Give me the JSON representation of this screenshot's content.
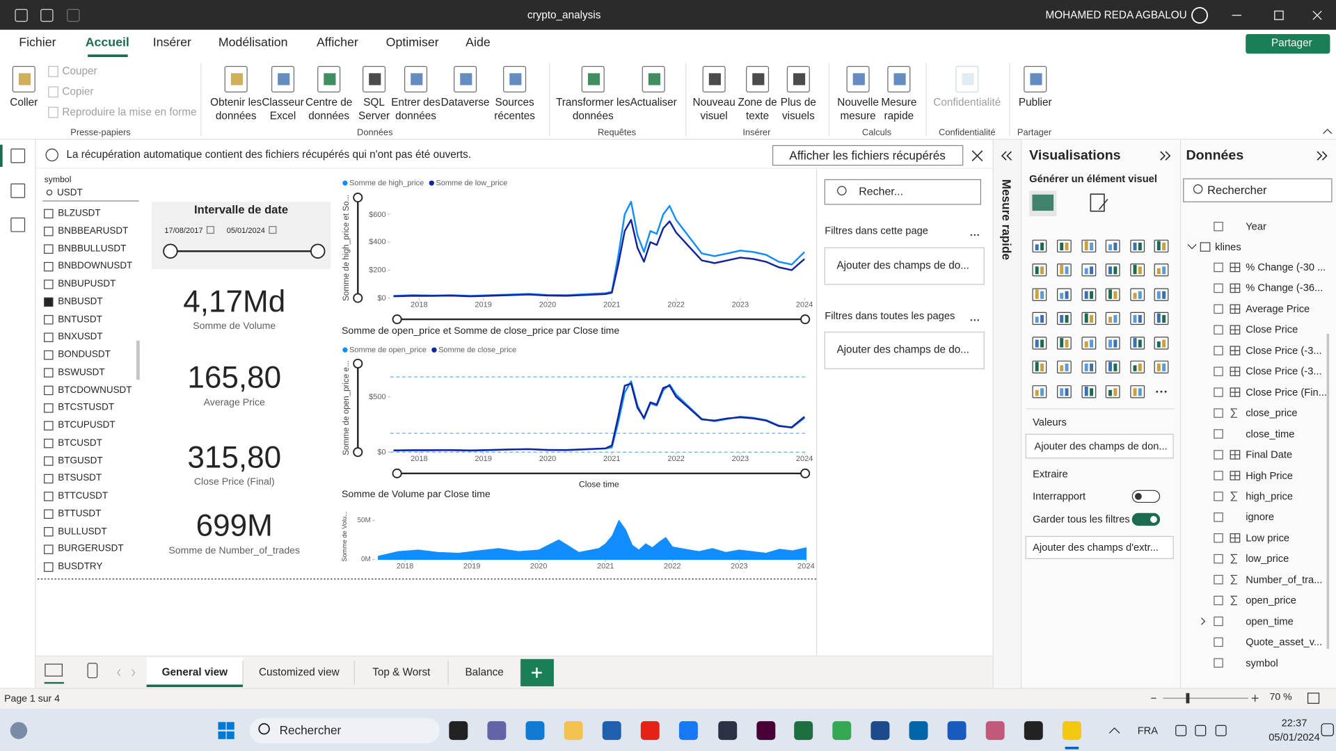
{
  "title_bar": {
    "file_name": "crypto_analysis",
    "user": "MOHAMED REDA AGBALOU"
  },
  "menu": {
    "tabs": [
      "Fichier",
      "Accueil",
      "Insérer",
      "Modélisation",
      "Afficher",
      "Optimiser",
      "Aide"
    ],
    "share": "Partager"
  },
  "ribbon": [
    {
      "group": "Presse-papiers",
      "buttons": [
        "Coller",
        "Couper",
        "Copier",
        "Reproduire la mise en forme"
      ]
    },
    {
      "group": "Données",
      "buttons": [
        "Obtenir les données",
        "Classeur Excel",
        "Centre de données",
        "SQL Server",
        "Entrer des données",
        "Dataverse",
        "Sources récentes"
      ]
    },
    {
      "group": "Requêtes",
      "buttons": [
        "Transformer les données",
        "Actualiser"
      ]
    },
    {
      "group": "Insérer",
      "buttons": [
        "Nouveau visuel",
        "Zone de texte",
        "Plus de visuels"
      ]
    },
    {
      "group": "Calculs",
      "buttons": [
        "Nouvelle mesure",
        "Mesure rapide"
      ]
    },
    {
      "group": "Confidentialité",
      "buttons": [
        "Confidentialité"
      ]
    },
    {
      "group": "Partager",
      "buttons": [
        "Publier"
      ]
    }
  ],
  "info_bar": {
    "message": "La récupération automatique contient des fichiers récupérés qui n'ont pas été ouverts.",
    "button": "Afficher les fichiers récupérés"
  },
  "slicer": {
    "title": "symbol",
    "search": "USDT",
    "items": [
      "BLZUSDT",
      "BNBBEARUSDT",
      "BNBBULLUSDT",
      "BNBDOWNUSDT",
      "BNBUPUSDT",
      "BNBUSDT",
      "BNTUSDT",
      "BNXUSDT",
      "BONDUSDT",
      "BSWUSDT",
      "BTCDOWNUSDT",
      "BTCSTUSDT",
      "BTCUPUSDT",
      "BTCUSDT",
      "BTGUSDT",
      "BTSUSDT",
      "BTTCUSDT",
      "BTTUSDT",
      "BULLUSDT",
      "BURGERUSDT",
      "BUSDTRY"
    ],
    "checked": [
      false,
      false,
      false,
      false,
      false,
      true,
      false,
      false,
      false,
      false,
      false,
      false,
      false,
      false,
      false,
      false,
      false,
      false,
      false,
      false,
      false
    ]
  },
  "date_slicer": {
    "title": "Intervalle de date",
    "start": "17/08/2017",
    "end": "05/01/2024"
  },
  "cards": [
    {
      "value": "4,17Md",
      "label": "Somme de Volume"
    },
    {
      "value": "165,80",
      "label": "Average Price"
    },
    {
      "value": "315,80",
      "label": "Close Price (Final)"
    },
    {
      "value": "699M",
      "label": "Somme de Number_of_trades"
    }
  ],
  "chart_data": [
    {
      "type": "line",
      "y_label": "Somme de high_price et So...",
      "x": [
        2017.6,
        2017.9,
        2018.2,
        2018.5,
        2018.8,
        2019.1,
        2019.4,
        2019.7,
        2020.0,
        2020.3,
        2020.6,
        2020.9,
        2021.0,
        2021.1,
        2021.2,
        2021.3,
        2021.4,
        2021.5,
        2021.6,
        2021.7,
        2021.8,
        2021.9,
        2022.0,
        2022.2,
        2022.4,
        2022.6,
        2022.8,
        2023.0,
        2023.2,
        2023.4,
        2023.6,
        2023.8,
        2024.0
      ],
      "series": [
        {
          "name": "Somme de high_price",
          "color": "#118DFF",
          "values": [
            15,
            20,
            18,
            20,
            15,
            20,
            25,
            30,
            22,
            20,
            28,
            35,
            45,
            300,
            600,
            690,
            450,
            330,
            480,
            460,
            600,
            660,
            560,
            440,
            320,
            300,
            320,
            340,
            330,
            310,
            260,
            240,
            330
          ]
        },
        {
          "name": "Somme de low_price",
          "color": "#12239E",
          "values": [
            12,
            16,
            15,
            17,
            12,
            16,
            20,
            25,
            18,
            16,
            22,
            28,
            38,
            240,
            480,
            560,
            360,
            260,
            400,
            380,
            500,
            550,
            470,
            370,
            270,
            250,
            270,
            290,
            280,
            260,
            220,
            200,
            280
          ]
        }
      ],
      "xlim": [
        2017.55,
        2024.05
      ],
      "xticks": [
        2018,
        2019,
        2020,
        2021,
        2022,
        2023,
        2024
      ],
      "ylim": [
        0,
        720
      ],
      "yticks": [
        {
          "value": 0,
          "label": "$0"
        },
        {
          "value": 200,
          "label": "$200"
        },
        {
          "value": 400,
          "label": "$400"
        },
        {
          "value": 600,
          "label": "$600"
        }
      ]
    },
    {
      "type": "line",
      "title": "Somme de open_price et Somme de close_price par Close time",
      "y_label": "Somme de open_price e...",
      "x_label": "Close time",
      "x": [
        2017.6,
        2017.9,
        2018.2,
        2018.5,
        2018.8,
        2019.1,
        2019.4,
        2019.7,
        2020.0,
        2020.3,
        2020.6,
        2020.9,
        2021.0,
        2021.1,
        2021.2,
        2021.3,
        2021.4,
        2021.5,
        2021.6,
        2021.7,
        2021.8,
        2021.9,
        2022.0,
        2022.2,
        2022.4,
        2022.6,
        2022.8,
        2023.0,
        2023.2,
        2023.4,
        2023.6,
        2023.8,
        2024.0
      ],
      "series": [
        {
          "name": "Somme de open_price",
          "color": "#118DFF",
          "values": [
            14,
            18,
            17,
            19,
            14,
            18,
            23,
            28,
            20,
            18,
            25,
            32,
            42,
            270,
            540,
            640,
            420,
            300,
            440,
            420,
            560,
            610,
            520,
            410,
            300,
            280,
            300,
            320,
            310,
            290,
            240,
            220,
            310
          ]
        },
        {
          "name": "Somme de close_price",
          "color": "#12239E",
          "values": [
            16,
            17,
            18,
            18,
            15,
            19,
            24,
            27,
            19,
            19,
            27,
            34,
            60,
            320,
            600,
            620,
            400,
            310,
            450,
            430,
            580,
            600,
            500,
            400,
            295,
            285,
            305,
            315,
            305,
            285,
            235,
            225,
            320
          ]
        }
      ],
      "reference_lines": [
        0,
        170,
        680
      ],
      "xlim": [
        2017.55,
        2024.05
      ],
      "xticks": [
        2018,
        2019,
        2020,
        2021,
        2022,
        2023,
        2024
      ],
      "ylim": [
        0,
        800
      ],
      "yticks": [
        {
          "value": 0,
          "label": "$0"
        },
        {
          "value": 500,
          "label": "$500"
        }
      ]
    },
    {
      "type": "area",
      "title": "Somme de Volume par Close time",
      "y_label": "Somme de Volu...",
      "x": [
        2017.6,
        2017.9,
        2018.2,
        2018.5,
        2018.8,
        2019.1,
        2019.4,
        2019.7,
        2020.0,
        2020.3,
        2020.6,
        2020.9,
        2021.0,
        2021.1,
        2021.2,
        2021.3,
        2021.4,
        2021.5,
        2021.6,
        2021.7,
        2021.8,
        2021.9,
        2022.0,
        2022.2,
        2022.4,
        2022.6,
        2022.8,
        2023.0,
        2023.2,
        2023.4,
        2023.6,
        2023.8,
        2024.0
      ],
      "series": [
        {
          "name": "Somme de Volume",
          "color": "#118DFF",
          "values": [
            4000000,
            10000000,
            12000000,
            9000000,
            8000000,
            11000000,
            14000000,
            10000000,
            12000000,
            25000000,
            9000000,
            14000000,
            20000000,
            30000000,
            50000000,
            38000000,
            18000000,
            12000000,
            20000000,
            15000000,
            22000000,
            28000000,
            16000000,
            13000000,
            10000000,
            14000000,
            9000000,
            12000000,
            10000000,
            8000000,
            13000000,
            11000000,
            15000000
          ]
        }
      ],
      "xlim": [
        2017.55,
        2024.05
      ],
      "xticks": [
        2018,
        2019,
        2020,
        2021,
        2022,
        2023,
        2024
      ],
      "ylim": [
        0,
        60000000
      ],
      "yticks": [
        {
          "value": 0,
          "label": "0M"
        },
        {
          "value": 50000000,
          "label": "50M"
        }
      ]
    }
  ],
  "filters": {
    "search": "Recher...",
    "this_page": "Filtres dans cette page",
    "all_pages": "Filtres dans toutes les pages",
    "add_field": "Ajouter des champs de do..."
  },
  "quick_measure": "Mesure rapide",
  "visualizations": {
    "title": "Visualisations",
    "build": "Générer un élément visuel",
    "values": "Valeurs",
    "add_values": "Ajouter des champs de don...",
    "drillthrough": "Extraire",
    "cross_report": "Interrapport",
    "cross_report_on": false,
    "keep_filters": "Garder tous les filtres",
    "keep_filters_on": true,
    "add_drill": "Ajouter des champs d'extr..."
  },
  "data_pane": {
    "title": "Données",
    "search": "Rechercher",
    "year": "Year",
    "table": "klines",
    "fields": [
      "% Change (-30 ...",
      "% Change (-36...",
      "Average Price",
      "Close Price",
      "Close Price (-3...",
      "Close Price (-3...",
      "Close Price (Fin...",
      "close_price",
      "close_time",
      "Final Date",
      "High Price",
      "high_price",
      "ignore",
      "Low price",
      "low_price",
      "Number_of_tra...",
      "open_price",
      "open_time",
      "Quote_asset_v...",
      "symbol"
    ]
  },
  "tabs": [
    "General view",
    "Customized view",
    "Top & Worst",
    "Balance"
  ],
  "status": {
    "page": "Page 1 sur 4",
    "zoom": "70 %"
  },
  "taskbar": {
    "search": "Rechercher",
    "language": "FRA",
    "time": "22:37",
    "date": "05/01/2024"
  }
}
